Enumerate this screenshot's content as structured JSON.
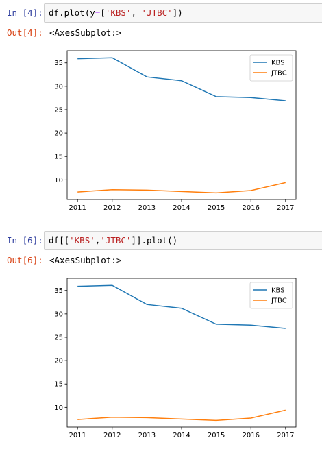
{
  "cells": [
    {
      "in_prompt": "In [4]:",
      "code": [
        {
          "t": "df",
          "c": "plain"
        },
        {
          "t": ".",
          "c": "plain"
        },
        {
          "t": "plot",
          "c": "plain"
        },
        {
          "t": "(",
          "c": "plain"
        },
        {
          "t": "y",
          "c": "plain"
        },
        {
          "t": "=",
          "c": "op"
        },
        {
          "t": "[",
          "c": "plain"
        },
        {
          "t": "'KBS'",
          "c": "str"
        },
        {
          "t": ", ",
          "c": "plain"
        },
        {
          "t": "'JTBC'",
          "c": "str"
        },
        {
          "t": "])",
          "c": "plain"
        }
      ],
      "out_prompt": "Out[4]:",
      "out_text": "<AxesSubplot:>"
    },
    {
      "in_prompt": "In [6]:",
      "code": [
        {
          "t": "df",
          "c": "plain"
        },
        {
          "t": "[[",
          "c": "plain"
        },
        {
          "t": "'KBS'",
          "c": "str"
        },
        {
          "t": ",",
          "c": "plain"
        },
        {
          "t": "'JTBC'",
          "c": "str"
        },
        {
          "t": "]].",
          "c": "plain"
        },
        {
          "t": "plot",
          "c": "plain"
        },
        {
          "t": "()",
          "c": "plain"
        }
      ],
      "out_prompt": "Out[6]:",
      "out_text": "<AxesSubplot:>"
    }
  ],
  "colors": {
    "code_string": "#ba2121",
    "code_operator": "#aa22ff",
    "in_prompt": "#303f9f",
    "out_prompt": "#d84315"
  },
  "chart_data": [
    {
      "type": "line",
      "title": "",
      "xlabel": "",
      "ylabel": "",
      "x": [
        2011,
        2012,
        2013,
        2014,
        2015,
        2016,
        2017
      ],
      "series": [
        {
          "name": "KBS",
          "color": "#1f77b4",
          "values": [
            35.9,
            36.1,
            32.0,
            31.2,
            27.8,
            27.6,
            26.9
          ]
        },
        {
          "name": "JTBC",
          "color": "#ff7f0e",
          "values": [
            7.4,
            7.9,
            7.8,
            7.5,
            7.2,
            7.7,
            9.4
          ]
        }
      ],
      "xlim": [
        2010.7,
        2017.3
      ],
      "ylim": [
        5.8,
        37.6
      ],
      "yticks": [
        10,
        15,
        20,
        25,
        30,
        35
      ],
      "xticks": [
        2011,
        2012,
        2013,
        2014,
        2015,
        2016,
        2017
      ],
      "legend_position": "top-right",
      "grid": false
    },
    {
      "type": "line",
      "title": "",
      "xlabel": "",
      "ylabel": "",
      "x": [
        2011,
        2012,
        2013,
        2014,
        2015,
        2016,
        2017
      ],
      "series": [
        {
          "name": "KBS",
          "color": "#1f77b4",
          "values": [
            35.9,
            36.1,
            32.0,
            31.2,
            27.8,
            27.6,
            26.9
          ]
        },
        {
          "name": "JTBC",
          "color": "#ff7f0e",
          "values": [
            7.4,
            7.9,
            7.8,
            7.5,
            7.2,
            7.7,
            9.4
          ]
        }
      ],
      "xlim": [
        2010.7,
        2017.3
      ],
      "ylim": [
        5.8,
        37.6
      ],
      "yticks": [
        10,
        15,
        20,
        25,
        30,
        35
      ],
      "xticks": [
        2011,
        2012,
        2013,
        2014,
        2015,
        2016,
        2017
      ],
      "legend_position": "top-right",
      "grid": false
    }
  ]
}
